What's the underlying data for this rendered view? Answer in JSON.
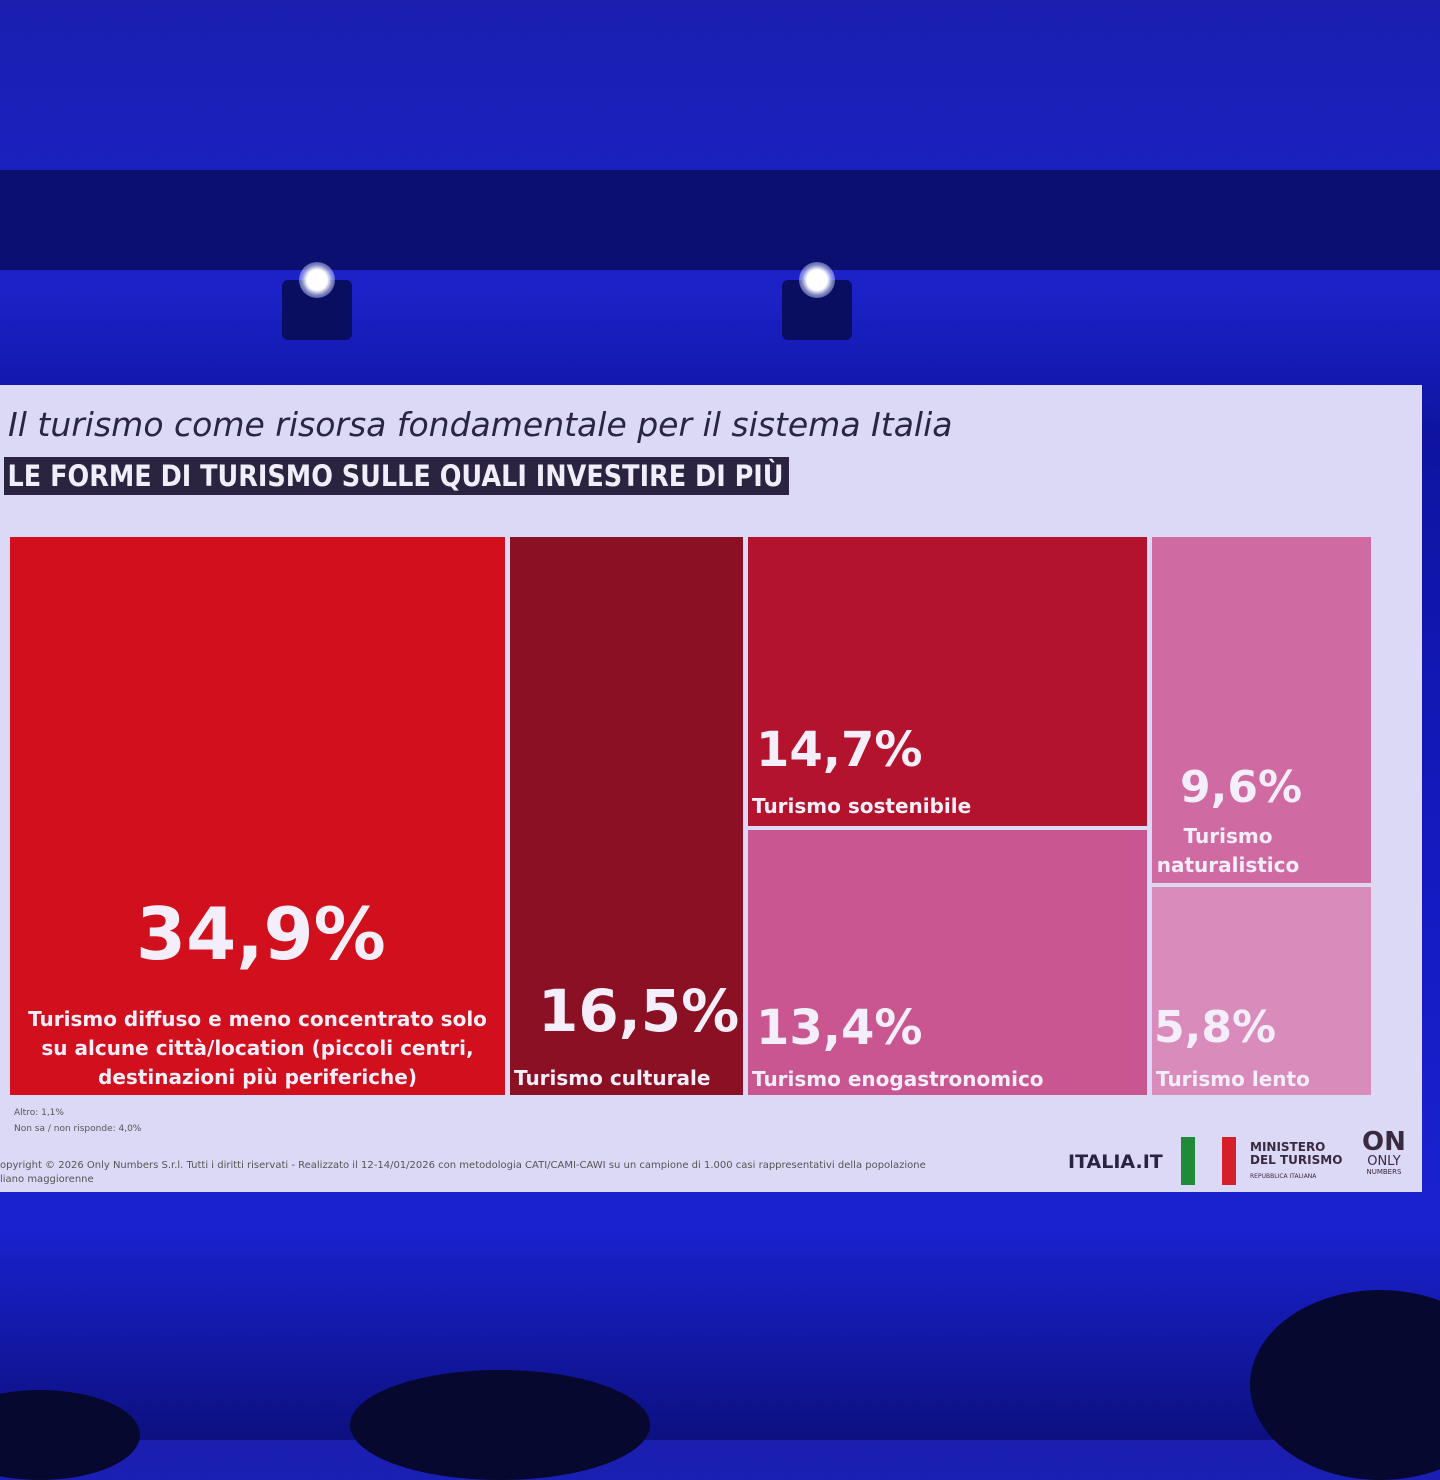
{
  "slide": {
    "title": "Il turismo come risorsa fondamentale per il sistema Italia",
    "subtitle": "LE FORME DI TURISMO SULLE QUALI INVESTIRE DI PIÙ"
  },
  "chart_data": {
    "type": "treemap",
    "unit": "%",
    "items": [
      {
        "value": 34.9,
        "value_label": "34,9%",
        "label": "Turismo diffuso e meno concentrato solo su alcune città/location (piccoli centri, destinazioni più periferiche)",
        "label_lines": [
          "Turismo diffuso e meno concentrato solo",
          "su alcune città/location (piccoli centri,",
          "destinazioni più periferiche)"
        ],
        "color": "#d20f1c"
      },
      {
        "value": 16.5,
        "value_label": "16,5%",
        "label": "Turismo culturale",
        "color": "#8c1023"
      },
      {
        "value": 14.7,
        "value_label": "14,7%",
        "label": "Turismo sostenibile",
        "color": "#b3132c"
      },
      {
        "value": 13.4,
        "value_label": "13,4%",
        "label": "Turismo enogastronomico",
        "color": "#c95690"
      },
      {
        "value": 9.6,
        "value_label": "9,6%",
        "label": "Turismo naturalistico",
        "label_lines": [
          "Turismo",
          "naturalistico"
        ],
        "color": "#d06aa2"
      },
      {
        "value": 5.8,
        "value_label": "5,8%",
        "label": "Turismo lento",
        "color": "#d98bbc"
      }
    ],
    "notes": [
      "Altro: 1,1%",
      "Non sa / non risponde: 4,0%"
    ]
  },
  "footer": {
    "copyright_lines": [
      "opyright © 2026 Only Numbers S.r.l. Tutti i diritti riservati - Realizzato il 12-14/01/2026 con metodologia CATI/CAMI-CAWI su un campione di 1.000 casi rappresentativi della popolazione",
      "liano maggiorenne"
    ],
    "logo_italia": "ITALIA.IT",
    "ministero": [
      "MINISTERO",
      "DEL TURISMO",
      "REPUBBLICA ITALIANA"
    ],
    "only_numbers": [
      "ON",
      "ONLY",
      "NUMBERS"
    ]
  }
}
